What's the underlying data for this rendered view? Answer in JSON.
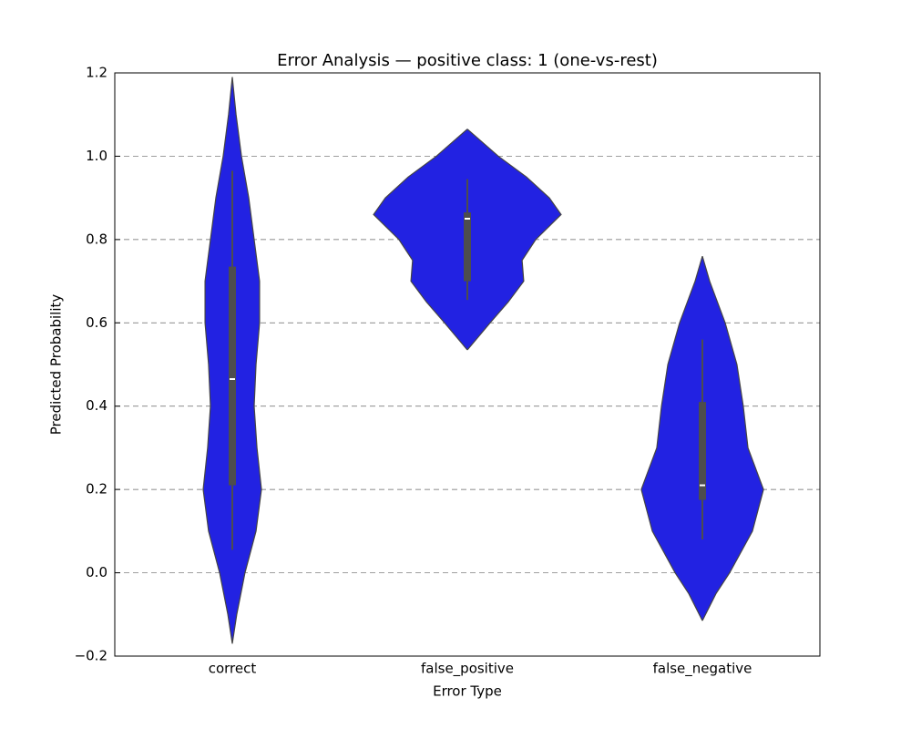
{
  "chart_data": {
    "type": "violin",
    "title": "Error Analysis — positive class: 1 (one-vs-rest)",
    "x_label": "Error Type",
    "y_label": "Predicted Probability",
    "categories": [
      "correct",
      "false_positive",
      "false_negative"
    ],
    "color": "#2222e2",
    "outline_color": "#444444",
    "box_color": "#4d4d4d",
    "ylim": [
      -0.2,
      1.2
    ],
    "yticks": [
      {
        "value": -0.2,
        "label": "−0.2"
      },
      {
        "value": 0,
        "label": "0.0"
      },
      0.2,
      0.4,
      0.6,
      0.8,
      {
        "value": 1,
        "label": "1.0"
      },
      1.2
    ],
    "grid": true,
    "violins": [
      {
        "y": [
          -0.17,
          -0.1,
          0,
          0.1,
          0.2,
          0.3,
          0.4,
          0.5,
          0.6,
          0.7,
          0.8,
          0.9,
          1.0,
          1.1,
          1.19
        ],
        "width": [
          0,
          0.019,
          0.054,
          0.101,
          0.124,
          0.105,
          0.093,
          0.101,
          0.116,
          0.116,
          0.093,
          0.07,
          0.039,
          0.016,
          0
        ],
        "whisker_low": 0.055,
        "q1": 0.21,
        "median": 0.465,
        "q3": 0.735,
        "whisker_high": 0.965
      },
      {
        "y": [
          0.535,
          0.6,
          0.65,
          0.7,
          0.75,
          0.8,
          0.86,
          0.9,
          0.95,
          1.0,
          1.065
        ],
        "width": [
          0,
          0.097,
          0.174,
          0.24,
          0.233,
          0.291,
          0.399,
          0.349,
          0.252,
          0.132,
          0
        ],
        "whisker_low": 0.655,
        "q1": 0.7,
        "median": 0.85,
        "q3": 0.865,
        "whisker_high": 0.945
      },
      {
        "y": [
          -0.115,
          -0.05,
          0,
          0.1,
          0.2,
          0.3,
          0.4,
          0.5,
          0.6,
          0.7,
          0.76
        ],
        "width": [
          0,
          0.058,
          0.116,
          0.213,
          0.26,
          0.194,
          0.174,
          0.147,
          0.097,
          0.031,
          0
        ],
        "whisker_low": 0.08,
        "q1": 0.175,
        "median": 0.21,
        "q3": 0.41,
        "whisker_high": 0.56
      }
    ]
  }
}
